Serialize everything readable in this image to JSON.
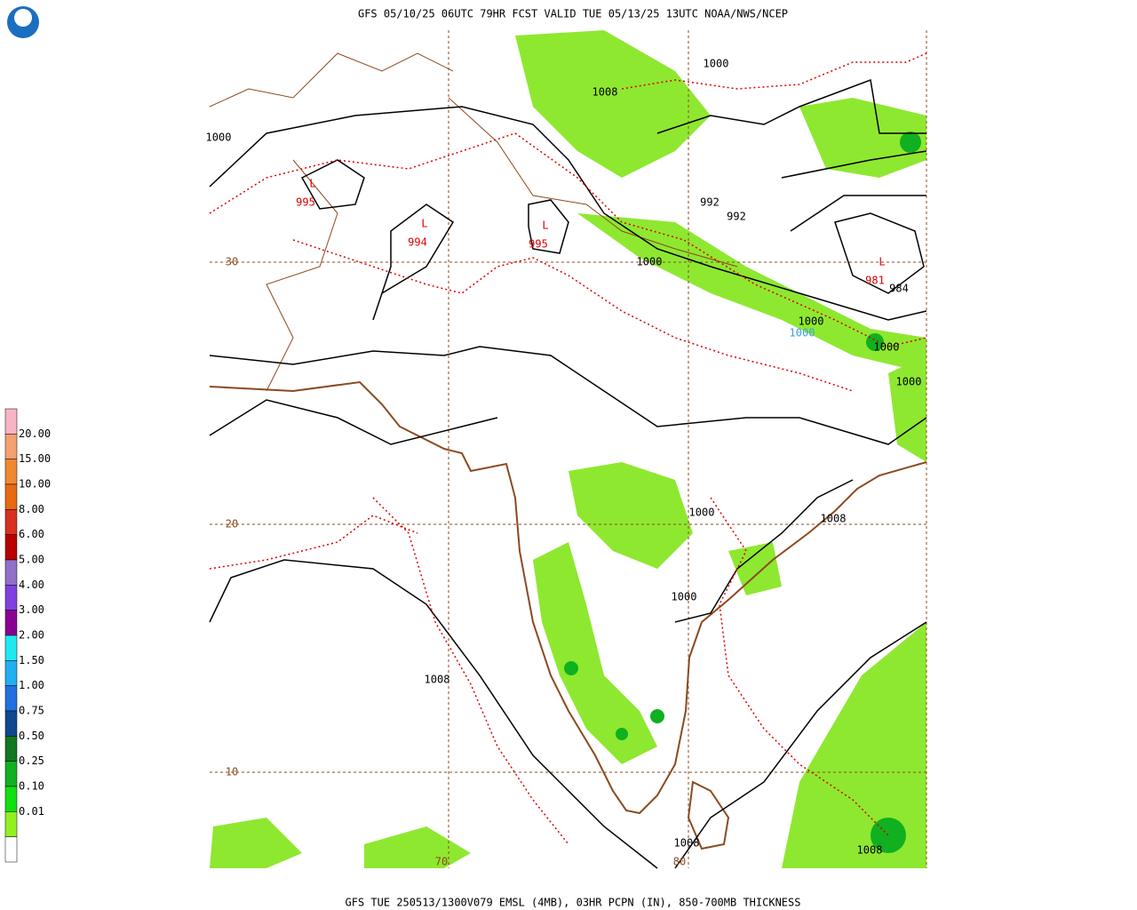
{
  "header": {
    "title": "GFS 05/10/25 06UTC 79HR FCST VALID TUE 05/13/25 13UTC NOAA/NWS/NCEP"
  },
  "footer": {
    "caption": "GFS TUE 250513/1300V079 EMSL (4MB), 03HR PCPN (IN), 850-700MB THICKNESS"
  },
  "legend": {
    "colors": [
      "#f8b4c4",
      "#f4a070",
      "#f08830",
      "#e86a10",
      "#d83020",
      "#b80000",
      "#9070c8",
      "#8040e0",
      "#8a0090",
      "#20e8f0",
      "#20b0f0",
      "#2070e0",
      "#104890",
      "#107820",
      "#10b020",
      "#10e010",
      "#90f020",
      "#ffffff"
    ],
    "labels": [
      "20.00",
      "15.00",
      "10.00",
      "8.00",
      "6.00",
      "5.00",
      "4.00",
      "3.00",
      "2.00",
      "1.50",
      "1.00",
      "0.75",
      "0.50",
      "0.25",
      "0.10",
      "0.01"
    ]
  },
  "map": {
    "contour_labels": [
      "1000",
      "1008",
      "1000",
      "992",
      "992",
      "1000",
      "984",
      "1000",
      "1000",
      "1000",
      "1000",
      "1008",
      "1000",
      "1008",
      "1008",
      "1008"
    ],
    "lows": [
      {
        "symbol": "L",
        "pressure": "995"
      },
      {
        "symbol": "L",
        "pressure": "994"
      },
      {
        "symbol": "L",
        "pressure": "995"
      },
      {
        "symbol": "L",
        "pressure": "981"
      }
    ],
    "thickness_labels": [
      "1000"
    ],
    "latitudes": [
      "30",
      "20",
      "10"
    ],
    "longitudes": [
      "70",
      "80"
    ]
  }
}
